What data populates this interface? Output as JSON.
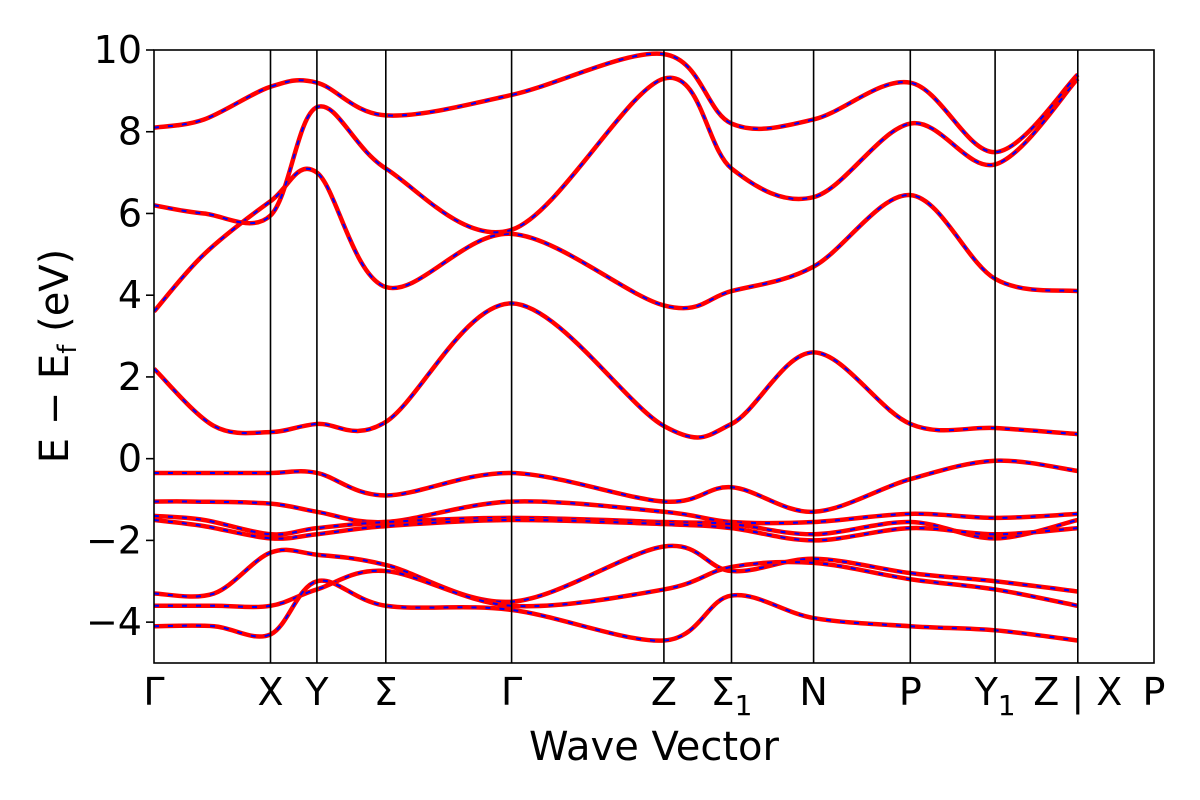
{
  "chart_data": {
    "type": "line",
    "xlabel": "Wave Vector",
    "ylabel_parts": {
      "base": "E − E",
      "subscript": "f",
      "unit": " (eV)"
    },
    "ylim": [
      -5,
      10
    ],
    "yticks": [
      -4,
      -2,
      0,
      2,
      4,
      6,
      8,
      10
    ],
    "ytick_labels": [
      "−4",
      "−2",
      "0",
      "2",
      "4",
      "6",
      "8",
      "10"
    ],
    "xlim": [
      0,
      1
    ],
    "high_symmetry_points": [
      {
        "label": "Γ",
        "sub": "",
        "x": 0.0
      },
      {
        "label": "X",
        "sub": "",
        "x": 0.1165
      },
      {
        "label": "Y",
        "sub": "",
        "x": 0.1629
      },
      {
        "label": "Σ",
        "sub": "",
        "x": 0.2318
      },
      {
        "label": "Γ",
        "sub": "",
        "x": 0.3576
      },
      {
        "label": "Z",
        "sub": "",
        "x": 0.5099
      },
      {
        "label": "Σ",
        "sub": "1",
        "x": 0.5775
      },
      {
        "label": "N",
        "sub": "",
        "x": 0.6596
      },
      {
        "label": "P",
        "sub": "",
        "x": 0.7563
      },
      {
        "label": "Y",
        "sub": "1",
        "x": 0.8411
      },
      {
        "label": "Z | X",
        "sub": "",
        "x": 0.9238
      },
      {
        "label": "P",
        "sub": "",
        "x": 1.0
      }
    ],
    "grid": false,
    "legend": "none",
    "series_colors": {
      "primary": "#ff0000",
      "overlay": "#0000ff"
    },
    "series": [
      {
        "x": [
          0,
          0.05,
          0.1165,
          0.1629,
          0.2318,
          0.3576,
          0.5099,
          0.5775,
          0.6596,
          0.7563,
          0.8411,
          0.9238
        ],
        "y": [
          -0.35,
          -0.35,
          -0.35,
          -0.35,
          -0.9,
          -0.35,
          -1.05,
          -0.7,
          -1.3,
          -0.5,
          -0.05,
          -0.3
        ]
      },
      {
        "x": [
          0,
          0.04,
          0.1165,
          0.1629,
          0.2318,
          0.3576,
          0.5099,
          0.5775,
          0.6596,
          0.7563,
          0.8411,
          0.9238
        ],
        "y": [
          -1.05,
          -1.05,
          -1.1,
          -1.3,
          -1.55,
          -1.05,
          -1.3,
          -1.55,
          -1.55,
          -1.35,
          -1.45,
          -1.35
        ]
      },
      {
        "x": [
          0,
          0.05,
          0.1165,
          0.1629,
          0.2318,
          0.3576,
          0.5099,
          0.5775,
          0.6596,
          0.7563,
          0.8411,
          0.9238
        ],
        "y": [
          -1.4,
          -1.5,
          -1.85,
          -1.7,
          -1.55,
          -1.45,
          -1.55,
          -1.6,
          -1.85,
          -1.55,
          -1.95,
          -1.5
        ]
      },
      {
        "x": [
          0,
          0.05,
          0.1165,
          0.1629,
          0.2318,
          0.3576,
          0.5099,
          0.5775,
          0.6596,
          0.7563,
          0.8411,
          0.9238
        ],
        "y": [
          -1.5,
          -1.65,
          -1.95,
          -1.85,
          -1.65,
          -1.5,
          -1.6,
          -1.7,
          -2.0,
          -1.7,
          -1.85,
          -1.7
        ]
      },
      {
        "x": [
          0,
          0.06,
          0.1165,
          0.1629,
          0.2318,
          0.3576,
          0.5099,
          0.5775,
          0.6596,
          0.7563,
          0.8411,
          0.9238
        ],
        "y": [
          -3.3,
          -3.3,
          -2.3,
          -2.35,
          -2.6,
          -3.5,
          -2.15,
          -2.75,
          -2.45,
          -2.8,
          -3.0,
          -3.25
        ]
      },
      {
        "x": [
          0,
          0.06,
          0.1165,
          0.1629,
          0.2318,
          0.3576,
          0.5099,
          0.5775,
          0.6596,
          0.7563,
          0.8411,
          0.9238
        ],
        "y": [
          -3.6,
          -3.6,
          -3.6,
          -3.2,
          -2.75,
          -3.6,
          -3.2,
          -2.65,
          -2.55,
          -2.95,
          -3.2,
          -3.6
        ]
      },
      {
        "x": [
          0,
          0.06,
          0.1165,
          0.1629,
          0.2318,
          0.3576,
          0.5099,
          0.5775,
          0.6596,
          0.7563,
          0.8411,
          0.9238
        ],
        "y": [
          -4.1,
          -4.1,
          -4.3,
          -3.0,
          -3.6,
          -3.7,
          -4.45,
          -3.35,
          -3.9,
          -4.1,
          -4.2,
          -4.45
        ]
      },
      {
        "x": [
          0,
          0.06,
          0.1165,
          0.1629,
          0.2318,
          0.3576,
          0.5099,
          0.5775,
          0.6596,
          0.7563,
          0.8411,
          0.9238
        ],
        "y": [
          2.2,
          0.8,
          0.65,
          0.85,
          0.9,
          3.8,
          0.8,
          0.85,
          2.6,
          0.85,
          0.75,
          0.6
        ]
      },
      {
        "x": [
          0,
          0.05,
          0.1165,
          0.1629,
          0.2318,
          0.3576,
          0.5099,
          0.5775,
          0.6596,
          0.7563,
          0.8411,
          0.9238
        ],
        "y": [
          3.6,
          5.0,
          6.3,
          7.0,
          4.2,
          5.5,
          3.75,
          4.1,
          4.7,
          6.45,
          4.4,
          4.1
        ]
      },
      {
        "x": [
          0,
          0.05,
          0.1165,
          0.1629,
          0.2318,
          0.3576,
          0.5099,
          0.5775,
          0.6596,
          0.7563,
          0.8411,
          0.9238
        ],
        "y": [
          6.2,
          6.0,
          5.95,
          8.6,
          7.1,
          5.6,
          9.3,
          7.1,
          6.4,
          8.2,
          7.2,
          9.3
        ]
      },
      {
        "x": [
          0,
          0.05,
          0.1165,
          0.1629,
          0.2318,
          0.3576,
          0.5099,
          0.5775,
          0.6596,
          0.7563,
          0.8411,
          0.9238
        ],
        "y": [
          8.1,
          8.3,
          9.1,
          9.2,
          8.4,
          8.9,
          9.9,
          8.2,
          8.3,
          9.2,
          7.5,
          9.4
        ]
      }
    ]
  }
}
